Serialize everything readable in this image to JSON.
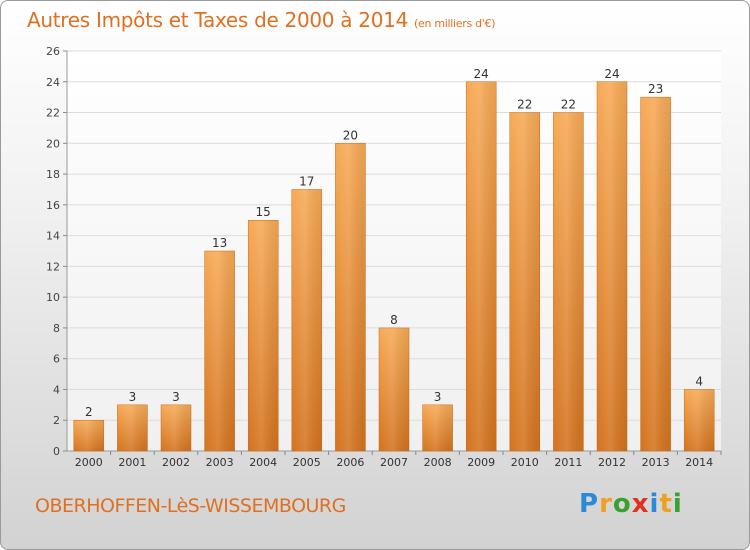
{
  "title": "Autres Impôts et Taxes de 2000 à 2014",
  "subtitle": "(en milliers d'€)",
  "commune": "OBERHOFFEN-LèS-WISSEMBOURG",
  "logo": {
    "letters": [
      "P",
      "r",
      "o",
      "x",
      "i",
      "t",
      "i"
    ]
  },
  "colors": {
    "accent": "#e07020",
    "bar_light": "#f5a452",
    "bar_dark": "#d97a26",
    "grid": "#d8d8d8"
  },
  "chart_data": {
    "type": "bar",
    "categories": [
      "2000",
      "2001",
      "2002",
      "2003",
      "2004",
      "2005",
      "2006",
      "2007",
      "2008",
      "2009",
      "2010",
      "2011",
      "2012",
      "2013",
      "2014"
    ],
    "values": [
      2,
      3,
      3,
      13,
      15,
      17,
      20,
      8,
      3,
      24,
      22,
      22,
      24,
      23,
      4
    ],
    "title": "Autres Impôts et Taxes de 2000 à 2014",
    "xlabel": "",
    "ylabel": "",
    "ylim": [
      0,
      26
    ],
    "yticks": [
      0,
      2,
      4,
      6,
      8,
      10,
      12,
      14,
      16,
      18,
      20,
      22,
      24,
      26
    ],
    "grid": true,
    "data_labels": true
  }
}
